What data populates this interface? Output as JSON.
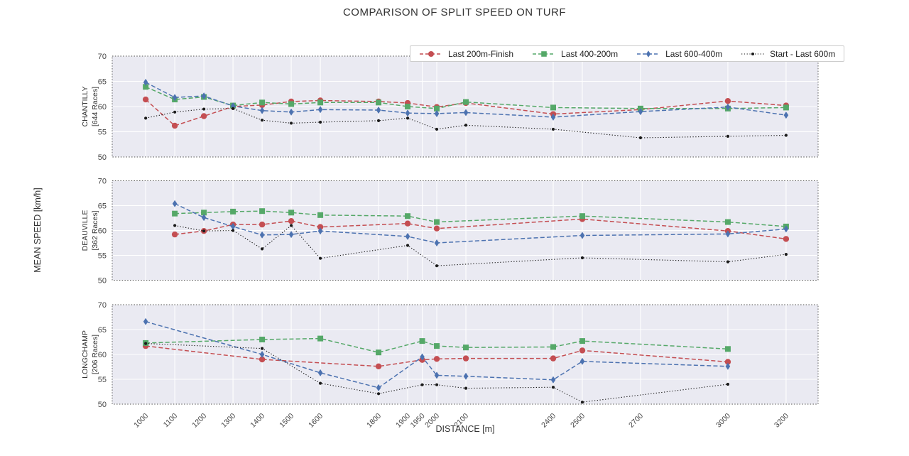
{
  "title": "COMPARISON OF SPLIT SPEED ON TURF",
  "chart_data": {
    "type": "line",
    "title": "COMPARISON OF SPLIT SPEED ON TURF",
    "xlabel": "DISTANCE [m]",
    "ylabel": "MEAN SPEED [km/h]",
    "xlim": [
      885,
      3310
    ],
    "ylim": [
      50,
      70
    ],
    "x_ticks": [
      1000,
      1100,
      1200,
      1300,
      1400,
      1500,
      1600,
      1800,
      1900,
      1950,
      2000,
      2100,
      2400,
      2500,
      2700,
      3000,
      3200
    ],
    "y_ticks": [
      70,
      65,
      60,
      55,
      50
    ],
    "grid": "on",
    "legend_position": "top-center",
    "panel_background": "#eaeaf2",
    "series_defs": [
      {
        "label": "Last 200m-Finish",
        "color": "#c44e52",
        "marker": "circle",
        "linestyle": "dashed"
      },
      {
        "label": "Last 400-200m",
        "color": "#55a868",
        "marker": "square",
        "linestyle": "dashed"
      },
      {
        "label": "Last 600-400m",
        "color": "#4c72b0",
        "marker": "diamond",
        "linestyle": "dashed"
      },
      {
        "label": "Start - Last 600m",
        "color": "#1a1a1a",
        "marker": "dot",
        "linestyle": "dotted"
      }
    ],
    "panels": [
      {
        "name": "CHANTILLY",
        "races": "[644 Races]",
        "series": [
          [
            [
              1000,
              61.4
            ],
            [
              1100,
              56.2
            ],
            [
              1200,
              58.1
            ],
            [
              1300,
              60.0
            ],
            [
              1400,
              60.3
            ],
            [
              1500,
              61.0
            ],
            [
              1600,
              61.2
            ],
            [
              1800,
              61.0
            ],
            [
              1900,
              60.7
            ],
            [
              2000,
              59.9
            ],
            [
              2100,
              60.7
            ],
            [
              2400,
              58.5
            ],
            [
              2700,
              59.4
            ],
            [
              3000,
              61.1
            ],
            [
              3200,
              60.2
            ]
          ],
          [
            [
              1000,
              63.9
            ],
            [
              1100,
              61.4
            ],
            [
              1200,
              61.9
            ],
            [
              1300,
              60.2
            ],
            [
              1400,
              60.8
            ],
            [
              1500,
              60.5
            ],
            [
              1600,
              60.8
            ],
            [
              1800,
              60.8
            ],
            [
              1900,
              60.0
            ],
            [
              2000,
              59.6
            ],
            [
              2100,
              60.9
            ],
            [
              2400,
              59.8
            ],
            [
              2700,
              59.6
            ],
            [
              3000,
              59.6
            ],
            [
              3200,
              59.8
            ]
          ],
          [
            [
              1000,
              64.8
            ],
            [
              1100,
              61.8
            ],
            [
              1200,
              62.1
            ],
            [
              1300,
              60.1
            ],
            [
              1400,
              59.2
            ],
            [
              1500,
              58.9
            ],
            [
              1600,
              59.4
            ],
            [
              1800,
              59.3
            ],
            [
              1900,
              58.7
            ],
            [
              2000,
              58.6
            ],
            [
              2100,
              58.8
            ],
            [
              2400,
              57.9
            ],
            [
              2700,
              59.0
            ],
            [
              3000,
              59.9
            ],
            [
              3200,
              58.3
            ]
          ],
          [
            [
              1000,
              57.7
            ],
            [
              1100,
              58.9
            ],
            [
              1200,
              59.5
            ],
            [
              1300,
              59.6
            ],
            [
              1400,
              57.3
            ],
            [
              1500,
              56.7
            ],
            [
              1600,
              56.9
            ],
            [
              1800,
              57.2
            ],
            [
              1900,
              57.7
            ],
            [
              2000,
              55.5
            ],
            [
              2100,
              56.3
            ],
            [
              2400,
              55.5
            ],
            [
              2700,
              53.8
            ],
            [
              3000,
              54.1
            ],
            [
              3200,
              54.3
            ]
          ]
        ]
      },
      {
        "name": "DEAUVILLE",
        "races": "[362 Races]",
        "series": [
          [
            [
              1100,
              59.2
            ],
            [
              1200,
              59.9
            ],
            [
              1300,
              61.2
            ],
            [
              1400,
              61.2
            ],
            [
              1500,
              61.9
            ],
            [
              1600,
              60.7
            ],
            [
              1900,
              61.4
            ],
            [
              2000,
              60.4
            ],
            [
              2500,
              62.3
            ],
            [
              3000,
              59.9
            ],
            [
              3200,
              58.3
            ]
          ],
          [
            [
              1100,
              63.4
            ],
            [
              1200,
              63.6
            ],
            [
              1300,
              63.8
            ],
            [
              1400,
              63.9
            ],
            [
              1500,
              63.6
            ],
            [
              1600,
              63.1
            ],
            [
              1900,
              62.9
            ],
            [
              2000,
              61.7
            ],
            [
              2500,
              62.9
            ],
            [
              3000,
              61.7
            ],
            [
              3200,
              60.8
            ]
          ],
          [
            [
              1100,
              65.4
            ],
            [
              1200,
              62.6
            ],
            [
              1300,
              60.8
            ],
            [
              1400,
              59.1
            ],
            [
              1500,
              59.2
            ],
            [
              1600,
              59.9
            ],
            [
              1900,
              58.8
            ],
            [
              2000,
              57.5
            ],
            [
              2500,
              59.0
            ],
            [
              3000,
              59.3
            ],
            [
              3200,
              60.3
            ]
          ],
          [
            [
              1100,
              61.0
            ],
            [
              1200,
              59.9
            ],
            [
              1300,
              60.0
            ],
            [
              1400,
              56.3
            ],
            [
              1500,
              61.0
            ],
            [
              1600,
              54.4
            ],
            [
              1900,
              57.0
            ],
            [
              2000,
              52.9
            ],
            [
              2500,
              54.5
            ],
            [
              3000,
              53.7
            ],
            [
              3200,
              55.2
            ]
          ]
        ]
      },
      {
        "name": "LONGCHAMP",
        "races": "[206 Races]",
        "series": [
          [
            [
              1000,
              61.7
            ],
            [
              1400,
              59.0
            ],
            [
              1800,
              57.6
            ],
            [
              1950,
              58.9
            ],
            [
              2000,
              59.1
            ],
            [
              2100,
              59.2
            ],
            [
              2400,
              59.2
            ],
            [
              2500,
              60.8
            ],
            [
              3000,
              58.5
            ]
          ],
          [
            [
              1000,
              62.3
            ],
            [
              1400,
              63.0
            ],
            [
              1600,
              63.2
            ],
            [
              1800,
              60.4
            ],
            [
              1950,
              62.7
            ],
            [
              2000,
              61.7
            ],
            [
              2100,
              61.4
            ],
            [
              2400,
              61.5
            ],
            [
              2500,
              62.7
            ],
            [
              3000,
              61.1
            ]
          ],
          [
            [
              1000,
              66.6
            ],
            [
              1400,
              60.0
            ],
            [
              1600,
              56.3
            ],
            [
              1800,
              53.3
            ],
            [
              1950,
              59.5
            ],
            [
              2000,
              55.8
            ],
            [
              2100,
              55.6
            ],
            [
              2400,
              54.9
            ],
            [
              2500,
              58.6
            ],
            [
              3000,
              57.6
            ]
          ],
          [
            [
              1000,
              62.2
            ],
            [
              1400,
              61.2
            ],
            [
              1600,
              54.2
            ],
            [
              1800,
              52.1
            ],
            [
              1950,
              53.9
            ],
            [
              2000,
              53.9
            ],
            [
              2100,
              53.2
            ],
            [
              2400,
              53.4
            ],
            [
              2500,
              50.4
            ],
            [
              3000,
              54.0
            ]
          ]
        ]
      }
    ]
  }
}
